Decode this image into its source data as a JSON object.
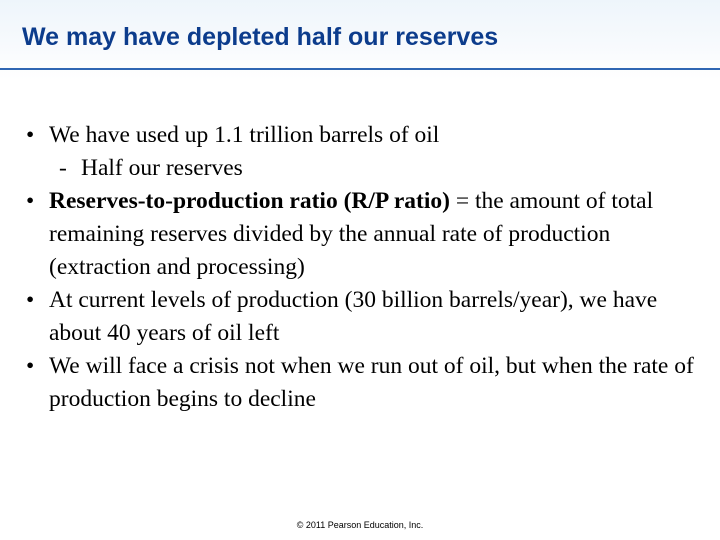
{
  "slide": {
    "title": "We may have depleted half our reserves",
    "bullets": [
      {
        "marker": "•",
        "text": "We have used up 1.1 trillion barrels of oil",
        "sub": {
          "marker": "-",
          "text": "Half our reserves"
        }
      },
      {
        "marker": "•",
        "bold": "Reserves-to-production ratio (R/P ratio)",
        "text": " = the amount of total remaining reserves divided by the annual rate of production (extraction and processing)"
      },
      {
        "marker": "•",
        "text": "At current levels of production (30 billion barrels/year), we have about 40 years of oil left"
      },
      {
        "marker": "•",
        "text": "We will face a crisis not when we run out of oil, but when the rate of production begins to decline"
      }
    ],
    "footer": "© 2011 Pearson Education, Inc."
  },
  "colors": {
    "title": "#0c3c8c",
    "rule": "#2f66b3",
    "header_gradient_top": "#eef5fb",
    "body_text": "#000000"
  }
}
